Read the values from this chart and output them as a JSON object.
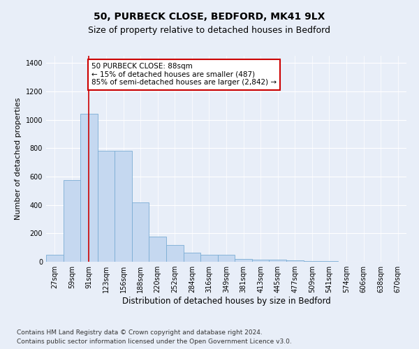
{
  "title1": "50, PURBECK CLOSE, BEDFORD, MK41 9LX",
  "title2": "Size of property relative to detached houses in Bedford",
  "xlabel": "Distribution of detached houses by size in Bedford",
  "ylabel": "Number of detached properties",
  "bar_labels": [
    "27sqm",
    "59sqm",
    "91sqm",
    "123sqm",
    "156sqm",
    "188sqm",
    "220sqm",
    "252sqm",
    "284sqm",
    "316sqm",
    "349sqm",
    "381sqm",
    "413sqm",
    "445sqm",
    "477sqm",
    "509sqm",
    "541sqm",
    "574sqm",
    "606sqm",
    "638sqm",
    "670sqm"
  ],
  "bar_values": [
    50,
    575,
    1040,
    780,
    780,
    420,
    175,
    120,
    65,
    50,
    50,
    20,
    15,
    15,
    8,
    5,
    3,
    2,
    1,
    1,
    0
  ],
  "bar_color": "#c5d8f0",
  "bar_edge_color": "#7badd4",
  "vline_x": 2,
  "vline_color": "#cc0000",
  "annotation_text": "50 PURBECK CLOSE: 88sqm\n← 15% of detached houses are smaller (487)\n85% of semi-detached houses are larger (2,842) →",
  "annotation_box_color": "#ffffff",
  "annotation_box_edge": "#cc0000",
  "ylim": [
    0,
    1450
  ],
  "yticks": [
    0,
    200,
    400,
    600,
    800,
    1000,
    1200,
    1400
  ],
  "bg_color": "#e8eef8",
  "plot_bg_color": "#e8eef8",
  "footer1": "Contains HM Land Registry data © Crown copyright and database right 2024.",
  "footer2": "Contains public sector information licensed under the Open Government Licence v3.0.",
  "title1_fontsize": 10,
  "title2_fontsize": 9,
  "xlabel_fontsize": 8.5,
  "ylabel_fontsize": 8,
  "tick_fontsize": 7,
  "footer_fontsize": 6.5,
  "annotation_fontsize": 7.5
}
